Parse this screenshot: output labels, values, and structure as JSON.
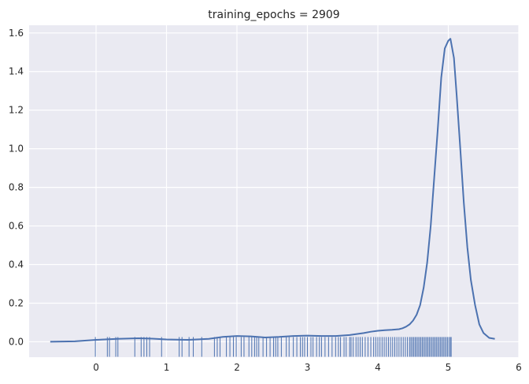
{
  "chart_data": {
    "type": "line",
    "title": "training_epochs = 2909",
    "xlabel": "",
    "ylabel": "",
    "xlim": [
      -0.95,
      6.0
    ],
    "ylim": [
      -0.08,
      1.64
    ],
    "x_ticks": [
      0,
      1,
      2,
      3,
      4,
      5,
      6
    ],
    "y_ticks": [
      0.0,
      0.2,
      0.4,
      0.6,
      0.8,
      1.0,
      1.2,
      1.4,
      1.6
    ],
    "x_tick_labels": [
      "0",
      "1",
      "2",
      "3",
      "4",
      "5",
      "6"
    ],
    "y_tick_labels": [
      "0.0",
      "0.2",
      "0.4",
      "0.6",
      "0.8",
      "1.0",
      "1.2",
      "1.4",
      "1.6"
    ],
    "grid": true,
    "background": "#EAEAF2",
    "line_color": "#4C72B0",
    "series": [
      {
        "kind": "kde",
        "x": [
          -0.65,
          -0.3,
          0.0,
          0.3,
          0.6,
          0.8,
          1.0,
          1.3,
          1.6,
          1.8,
          2.0,
          2.2,
          2.4,
          2.6,
          2.8,
          3.0,
          3.2,
          3.4,
          3.6,
          3.8,
          3.9,
          4.0,
          4.1,
          4.2,
          4.3,
          4.35,
          4.4,
          4.45,
          4.5,
          4.55,
          4.6,
          4.65,
          4.7,
          4.75,
          4.8,
          4.85,
          4.9,
          4.95,
          5.0,
          5.03,
          5.08,
          5.12,
          5.17,
          5.22,
          5.27,
          5.32,
          5.38,
          5.44,
          5.5,
          5.58,
          5.66
        ],
        "y": [
          0.0,
          0.002,
          0.01,
          0.015,
          0.018,
          0.016,
          0.012,
          0.01,
          0.015,
          0.025,
          0.03,
          0.028,
          0.022,
          0.025,
          0.03,
          0.032,
          0.03,
          0.03,
          0.035,
          0.045,
          0.052,
          0.057,
          0.06,
          0.062,
          0.065,
          0.07,
          0.078,
          0.09,
          0.11,
          0.14,
          0.19,
          0.28,
          0.41,
          0.6,
          0.85,
          1.1,
          1.37,
          1.52,
          1.56,
          1.57,
          1.47,
          1.27,
          1.0,
          0.72,
          0.49,
          0.32,
          0.19,
          0.09,
          0.045,
          0.02,
          0.015
        ]
      }
    ],
    "rug": [
      -0.01,
      0.16,
      0.19,
      0.28,
      0.31,
      0.55,
      0.64,
      0.68,
      0.72,
      0.76,
      0.93,
      1.18,
      1.22,
      1.32,
      1.38,
      1.5,
      1.68,
      1.72,
      1.76,
      1.85,
      1.9,
      1.95,
      1.99,
      2.06,
      2.1,
      2.17,
      2.21,
      2.25,
      2.28,
      2.31,
      2.37,
      2.42,
      2.47,
      2.52,
      2.55,
      2.58,
      2.63,
      2.7,
      2.74,
      2.8,
      2.85,
      2.9,
      2.93,
      2.96,
      3.0,
      3.05,
      3.08,
      3.13,
      3.17,
      3.2,
      3.25,
      3.3,
      3.35,
      3.4,
      3.44,
      3.47,
      3.52,
      3.55,
      3.6,
      3.62,
      3.65,
      3.69,
      3.72,
      3.75,
      3.78,
      3.82,
      3.86,
      3.9,
      3.94,
      3.97,
      4.0,
      4.03,
      4.06,
      4.09,
      4.12,
      4.15,
      4.18,
      4.21,
      4.24,
      4.27,
      4.3,
      4.33,
      4.36,
      4.39,
      4.42,
      4.45,
      4.47,
      4.49,
      4.51,
      4.53,
      4.55,
      4.57,
      4.59,
      4.61,
      4.63,
      4.65,
      4.67,
      4.69,
      4.71,
      4.73,
      4.75,
      4.77,
      4.79,
      4.81,
      4.83,
      4.85,
      4.87,
      4.89,
      4.91,
      4.93,
      4.95,
      4.97,
      4.99,
      5.01,
      5.03,
      5.04
    ]
  }
}
